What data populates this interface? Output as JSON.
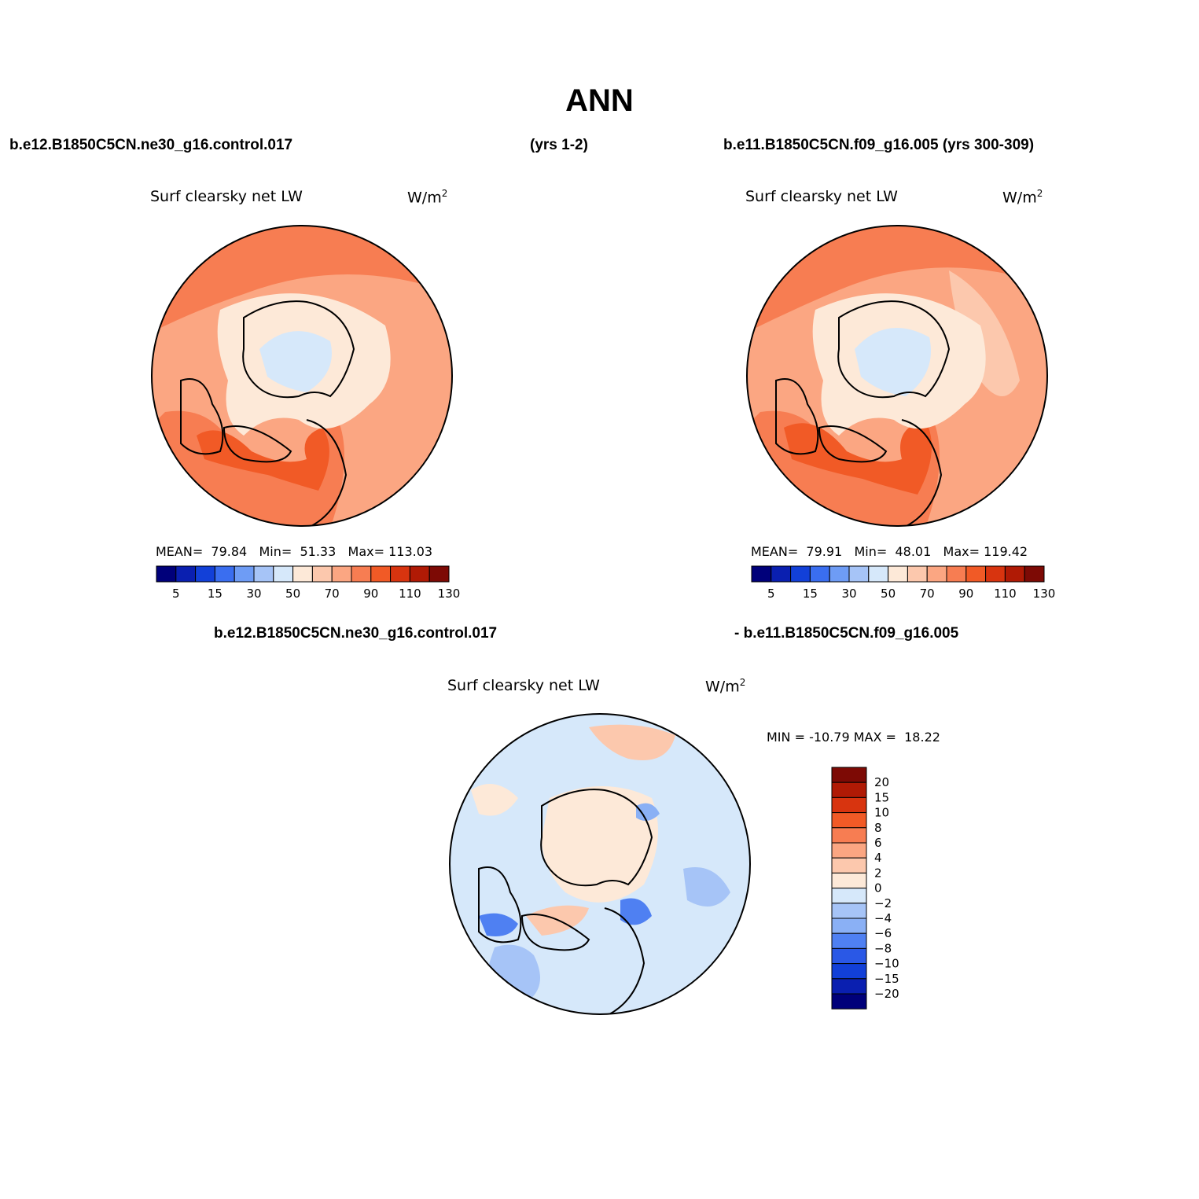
{
  "title": "ANN",
  "header": {
    "case1": "b.e12.B1850C5CN.ne30_g16.control.017",
    "case1_years": "(yrs 1-2)",
    "case2": "b.e11.B1850C5CN.f09_g16.005 (yrs 300-309)"
  },
  "panels": [
    {
      "variable": "Surf clearsky net LW",
      "units": "W/m",
      "units_exp": "2",
      "mean_label": "MEAN=",
      "mean": "79.84",
      "min_label": "Min=",
      "min": "51.33",
      "max_label": "Max=",
      "max": "113.03"
    },
    {
      "variable": "Surf clearsky net LW",
      "units": "W/m",
      "units_exp": "2",
      "mean_label": "MEAN=",
      "mean": "79.91",
      "min_label": "Min=",
      "min": "48.01",
      "max_label": "Max=",
      "max": "119.42"
    }
  ],
  "diff": {
    "case_left": "b.e12.B1850C5CN.ne30_g16.control.017",
    "case_right": "- b.e11.B1850C5CN.f09_g16.005",
    "variable": "Surf clearsky net LW",
    "units": "W/m",
    "units_exp": "2",
    "min_label": "MIN =",
    "min": "-10.79",
    "max_label": "MAX =",
    "max": "18.22"
  },
  "colorbar_abs": {
    "colors": [
      "#00007a",
      "#0a1fb0",
      "#1240d8",
      "#3a6ef0",
      "#6e9cf5",
      "#a6c4f7",
      "#d6e8fa",
      "#fde9d8",
      "#fcc8ad",
      "#fba682",
      "#f77d52",
      "#f15a26",
      "#d8340f",
      "#b01a05",
      "#7d0a05"
    ],
    "labels": [
      "5",
      "15",
      "30",
      "50",
      "70",
      "90",
      "110",
      "130"
    ]
  },
  "colorbar_diff": {
    "colors_top_to_bottom": [
      "#7d0a05",
      "#b01a05",
      "#d8340f",
      "#f15a26",
      "#f77d52",
      "#fba682",
      "#fcc8ad",
      "#fde9d8",
      "#d6e8fa",
      "#a6c4f7",
      "#8ab0f5",
      "#4f80f2",
      "#2a58e6",
      "#1240d8",
      "#0a1fb0",
      "#00007a"
    ],
    "labels": [
      "20",
      "15",
      "10",
      "8",
      "6",
      "4",
      "2",
      "0",
      "-2",
      "-4",
      "-6",
      "-8",
      "-10",
      "-15",
      "-20"
    ]
  }
}
